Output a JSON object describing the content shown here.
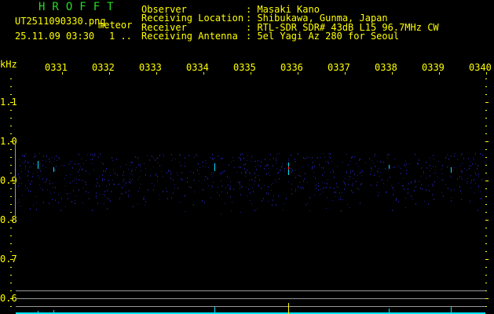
{
  "header": {
    "logo": "HROFFT",
    "filename": "UT2511090330.png",
    "mode": "meteor",
    "datetime": "25.11.09 03:30",
    "count": "1 ..",
    "info": [
      {
        "label": "Observer",
        "value": ": Masaki Kano"
      },
      {
        "label": "Receiving Location",
        "value": ": Shibukawa, Gunma, Japan"
      },
      {
        "label": "Receiver",
        "value": ": RTL-SDR SDR# 43dB L15 96.7MHz CW"
      },
      {
        "label": "Receiving Antenna",
        "value": ": 5el Yagi Az 280 for Seoul"
      }
    ]
  },
  "axis": {
    "unit": "kHz",
    "time_labels": [
      "0331",
      "0332",
      "0333",
      "0334",
      "0335",
      "0336",
      "0337",
      "0338",
      "0339",
      "0340"
    ],
    "freq_labels": [
      "1.1",
      "1.0",
      "0.9",
      "0.8",
      "0.7",
      "0.6"
    ]
  },
  "colors": {
    "text": "#ffff00",
    "logo": "#22dd22",
    "echo": "#00e5ff",
    "noise": "#1a1a8a",
    "grid": "#999999"
  }
}
